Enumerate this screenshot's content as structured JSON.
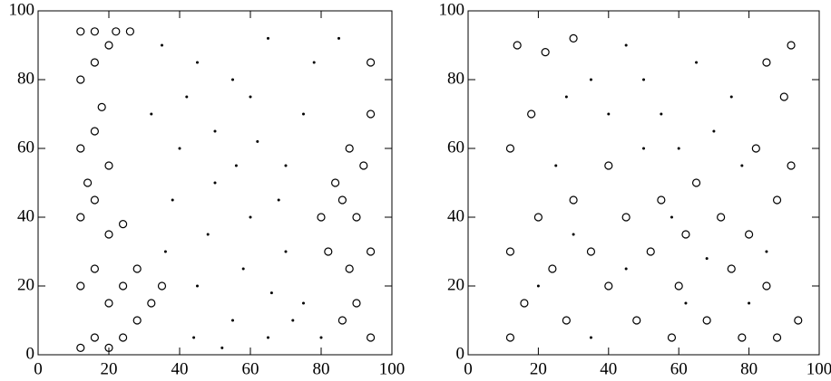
{
  "chart_data": [
    {
      "type": "scatter",
      "xlim": [
        0,
        100
      ],
      "ylim": [
        0,
        100
      ],
      "xticks": [
        0,
        20,
        40,
        60,
        80,
        100
      ],
      "yticks": [
        0,
        20,
        40,
        60,
        80,
        100
      ],
      "series": [
        {
          "marker": "circle",
          "color": "#000000",
          "x": [
            12,
            12,
            12,
            12,
            12,
            12,
            16,
            16,
            16,
            16,
            16,
            16,
            20,
            20,
            20,
            20,
            20,
            24,
            24,
            24,
            28,
            28,
            32,
            35,
            14,
            18,
            22,
            26,
            86,
            88,
            90,
            92,
            94,
            84,
            80,
            82,
            90,
            94,
            88,
            94,
            94,
            86
          ],
          "values": [
            2,
            20,
            40,
            60,
            80,
            94,
            5,
            25,
            45,
            65,
            85,
            94,
            2,
            15,
            35,
            55,
            90,
            5,
            20,
            38,
            10,
            25,
            15,
            20,
            50,
            72,
            94,
            94,
            10,
            25,
            40,
            55,
            70,
            50,
            40,
            30,
            15,
            5,
            60,
            85,
            30,
            45
          ]
        },
        {
          "marker": "dot",
          "color": "#000000",
          "x": [
            35,
            45,
            55,
            65,
            75,
            40,
            50,
            60,
            70,
            45,
            55,
            65,
            75,
            50,
            60,
            70,
            38,
            48,
            58,
            68,
            78,
            85,
            32,
            42,
            62,
            72,
            80,
            52,
            66,
            44,
            56,
            36
          ],
          "values": [
            90,
            85,
            80,
            92,
            70,
            60,
            50,
            40,
            30,
            20,
            10,
            5,
            15,
            65,
            75,
            55,
            45,
            35,
            25,
            45,
            85,
            92,
            70,
            75,
            62,
            10,
            5,
            2,
            18,
            5,
            55,
            30
          ]
        }
      ]
    },
    {
      "type": "scatter",
      "xlim": [
        0,
        100
      ],
      "ylim": [
        0,
        100
      ],
      "xticks": [
        0,
        20,
        40,
        60,
        80,
        100
      ],
      "yticks": [
        0,
        20,
        40,
        60,
        80,
        100
      ],
      "series": [
        {
          "marker": "circle",
          "color": "#000000",
          "x": [
            12,
            12,
            12,
            14,
            16,
            20,
            24,
            28,
            30,
            35,
            40,
            45,
            48,
            52,
            55,
            60,
            62,
            65,
            68,
            72,
            75,
            78,
            80,
            82,
            85,
            88,
            90,
            92,
            94,
            88,
            18,
            22,
            30,
            85,
            92,
            40,
            58
          ],
          "values": [
            5,
            30,
            60,
            90,
            15,
            40,
            25,
            10,
            45,
            30,
            20,
            40,
            10,
            30,
            45,
            20,
            35,
            50,
            10,
            40,
            25,
            5,
            35,
            60,
            20,
            45,
            75,
            90,
            10,
            5,
            70,
            88,
            92,
            85,
            55,
            55,
            5
          ]
        },
        {
          "marker": "dot",
          "color": "#000000",
          "x": [
            35,
            45,
            55,
            65,
            75,
            50,
            60,
            40,
            25,
            70,
            30,
            45,
            62,
            80,
            20,
            50,
            68,
            78,
            35,
            58,
            85,
            28
          ],
          "values": [
            80,
            90,
            70,
            85,
            75,
            60,
            60,
            70,
            55,
            65,
            35,
            25,
            15,
            15,
            20,
            80,
            28,
            55,
            5,
            40,
            30,
            75
          ]
        }
      ]
    }
  ]
}
